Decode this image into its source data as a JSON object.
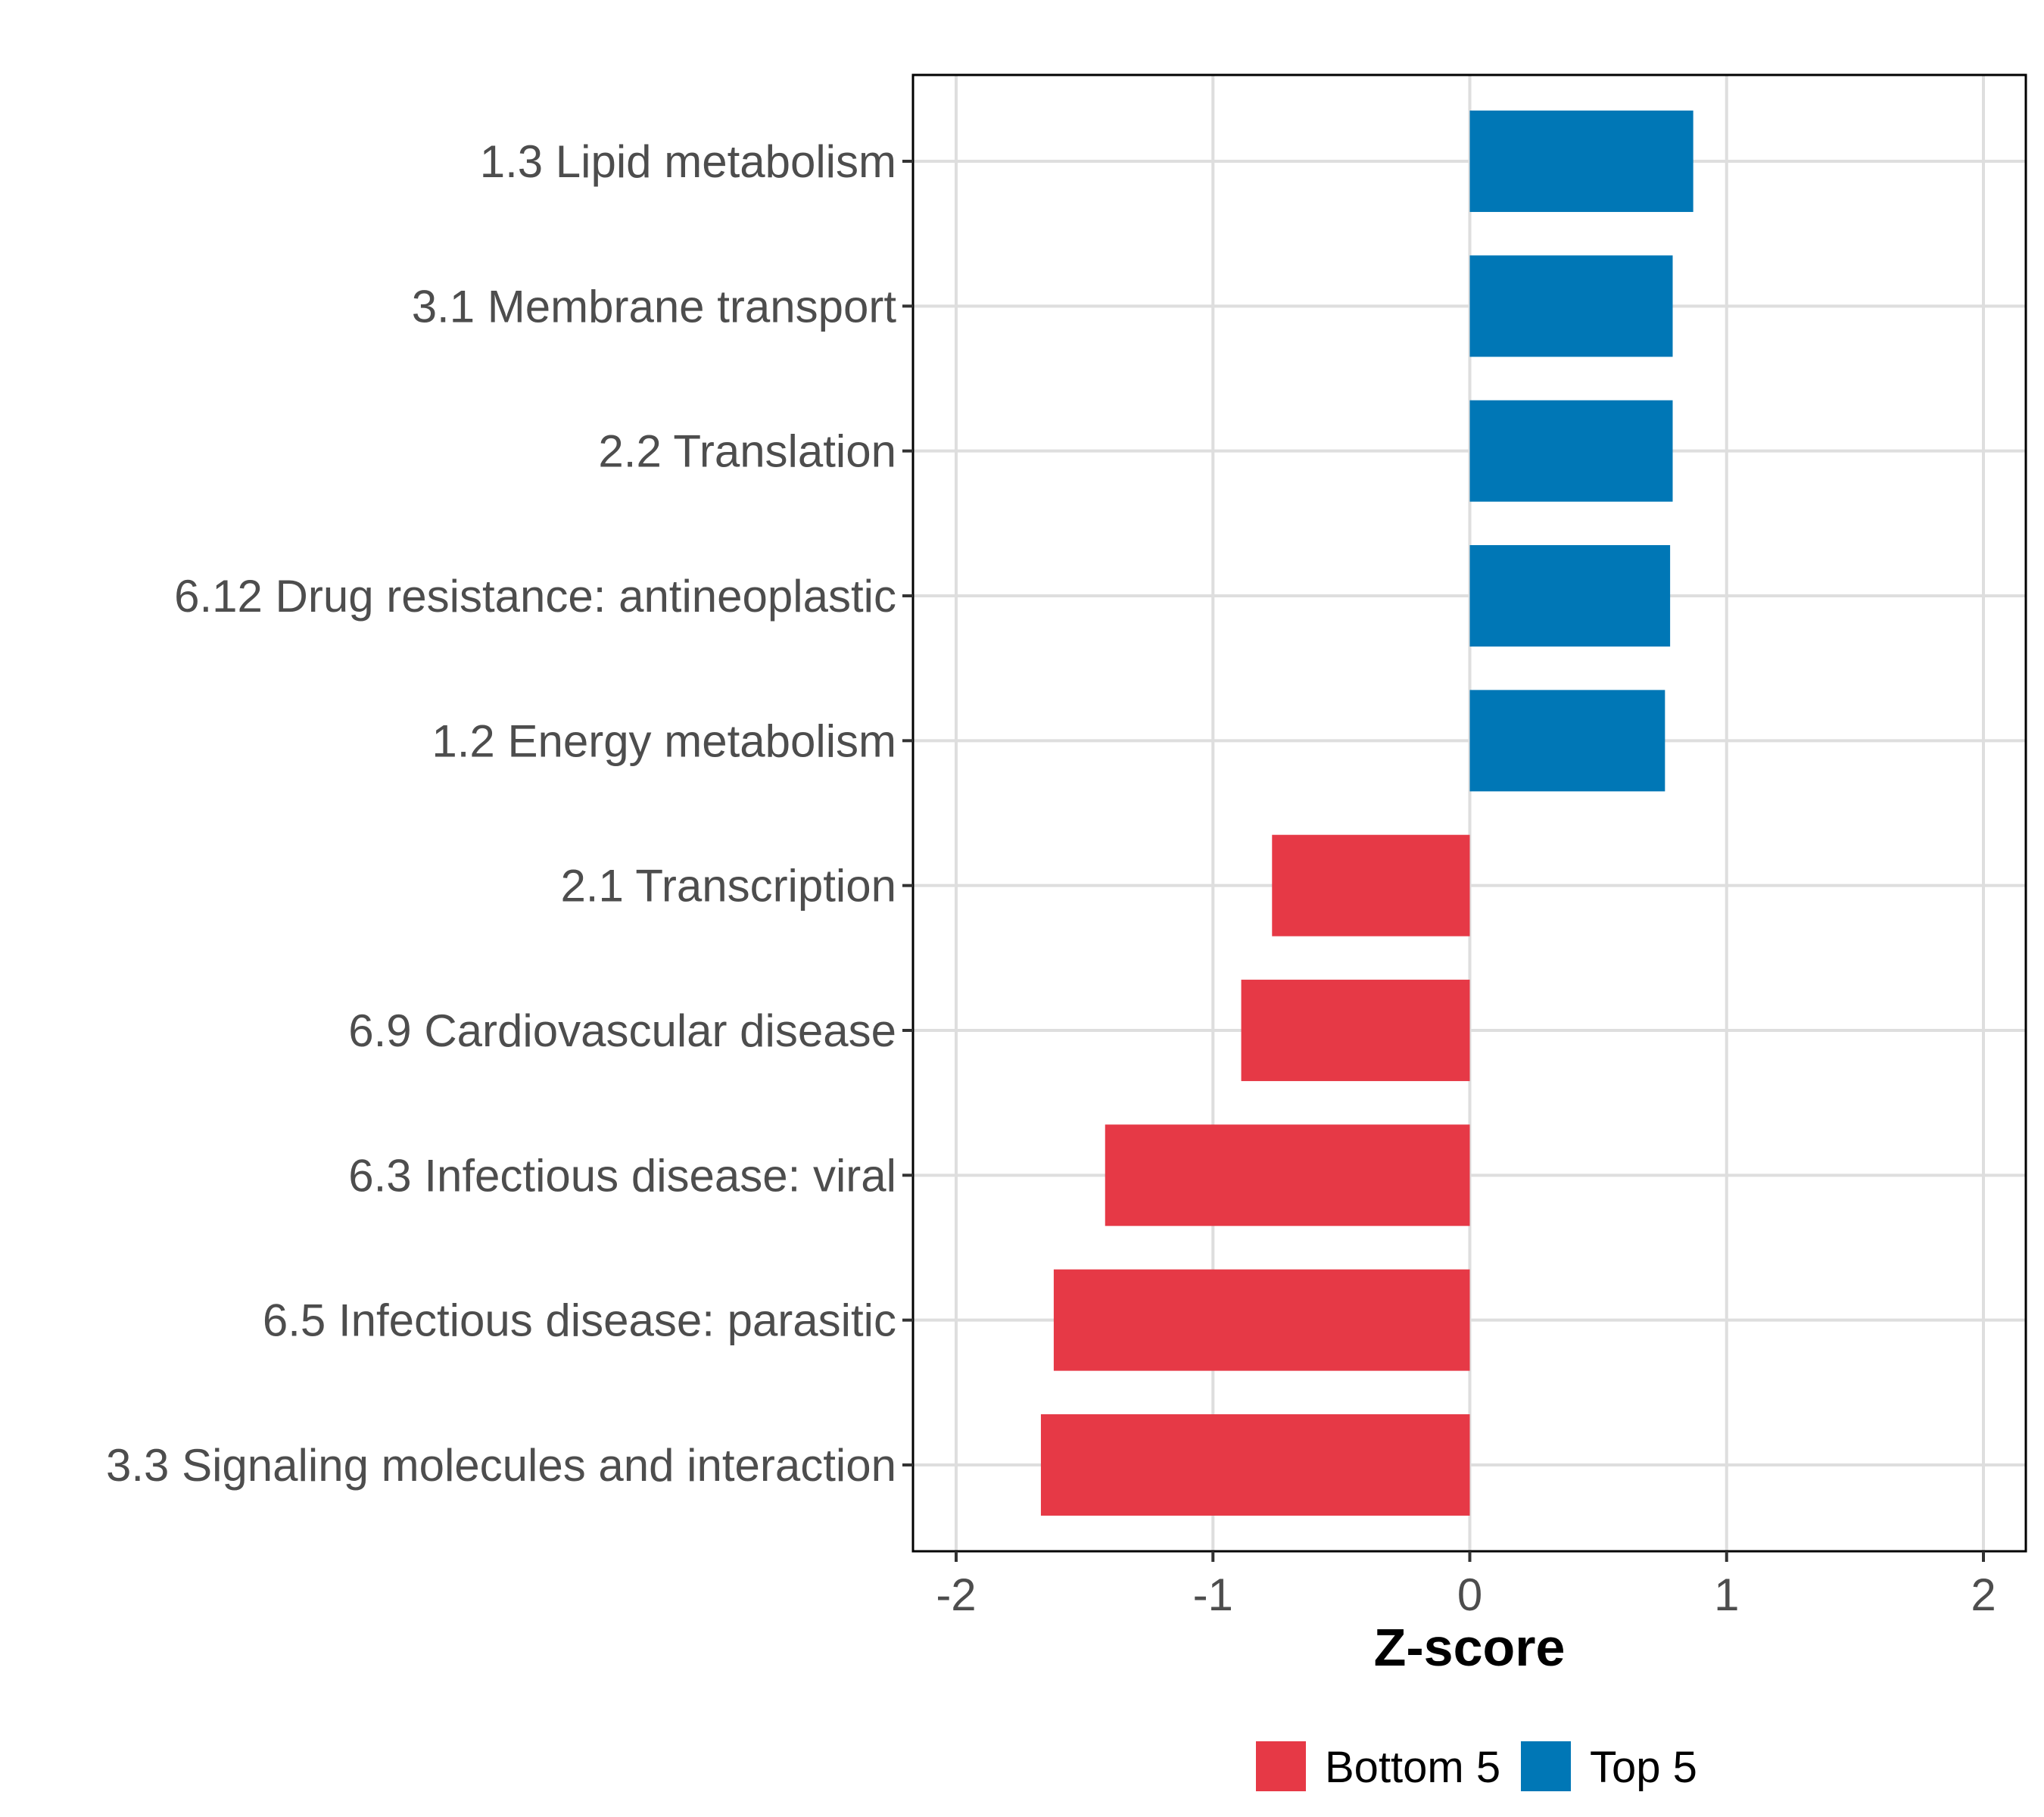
{
  "chart_data": {
    "type": "bar",
    "orientation": "horizontal",
    "title": "",
    "xlabel": "Z-score",
    "ylabel": "",
    "xlim": [
      -2.16,
      2.09
    ],
    "xticks": [
      -2,
      -1,
      0,
      1,
      2
    ],
    "xtick_labels": [
      "-2",
      "-1",
      "0",
      "1",
      "2"
    ],
    "grid": true,
    "legend_position": "bottom",
    "categories": [
      "1.3 Lipid metabolism",
      "3.1 Membrane transport",
      "2.2 Translation",
      "6.12 Drug resistance: antineoplastic",
      "1.2 Energy metabolism",
      "2.1 Transcription",
      "6.9 Cardiovascular disease",
      "6.3 Infectious disease: viral",
      "6.5 Infectious disease: parasitic",
      "3.3 Signaling molecules and interaction"
    ],
    "values": [
      0.87,
      0.79,
      0.79,
      0.78,
      0.76,
      -0.77,
      -0.89,
      -1.42,
      -1.62,
      -1.67
    ],
    "groups": [
      "Top 5",
      "Top 5",
      "Top 5",
      "Top 5",
      "Top 5",
      "Bottom 5",
      "Bottom 5",
      "Bottom 5",
      "Bottom 5",
      "Bottom 5"
    ],
    "legend": [
      {
        "name": "Bottom 5",
        "color": "#E63946"
      },
      {
        "name": "Top 5",
        "color": "#0077B6"
      }
    ],
    "colors": {
      "Top 5": "#0077B6",
      "Bottom 5": "#E63946",
      "grid": "#DEDEDE",
      "frame": "#000000"
    }
  }
}
